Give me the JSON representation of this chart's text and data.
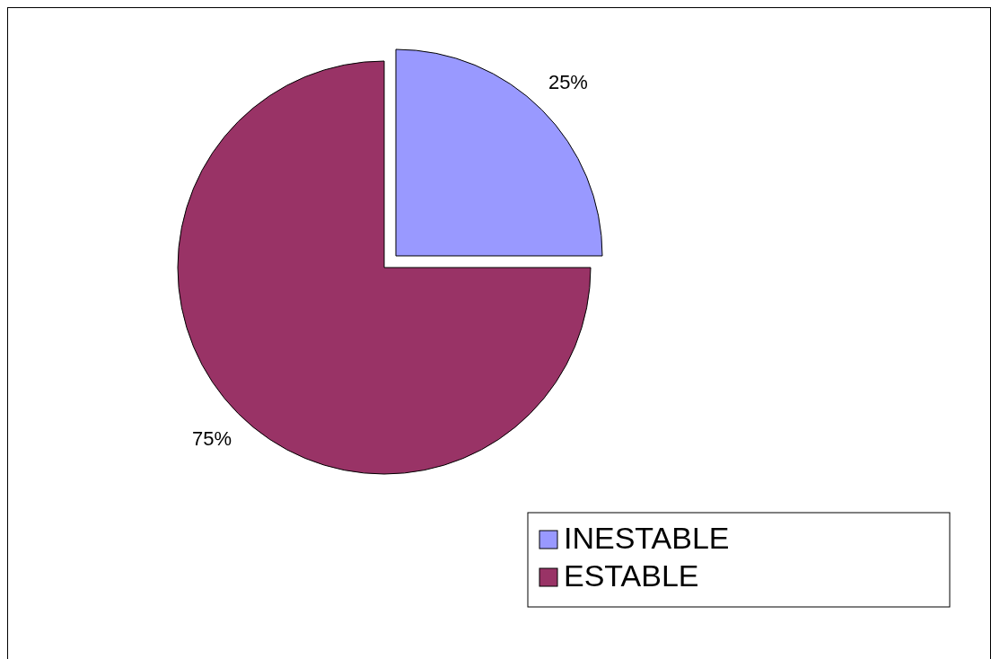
{
  "chart_data": {
    "type": "pie",
    "categories": [
      "INESTABLE",
      "ESTABLE"
    ],
    "values": [
      25,
      75
    ],
    "colors": [
      "#9999ff",
      "#993366"
    ],
    "value_labels": [
      "25%",
      "75%"
    ],
    "legend": "bottom right"
  }
}
